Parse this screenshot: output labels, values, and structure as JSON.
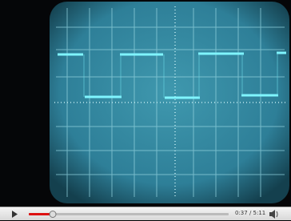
{
  "player": {
    "time": "0:37 / 5:11"
  }
}
